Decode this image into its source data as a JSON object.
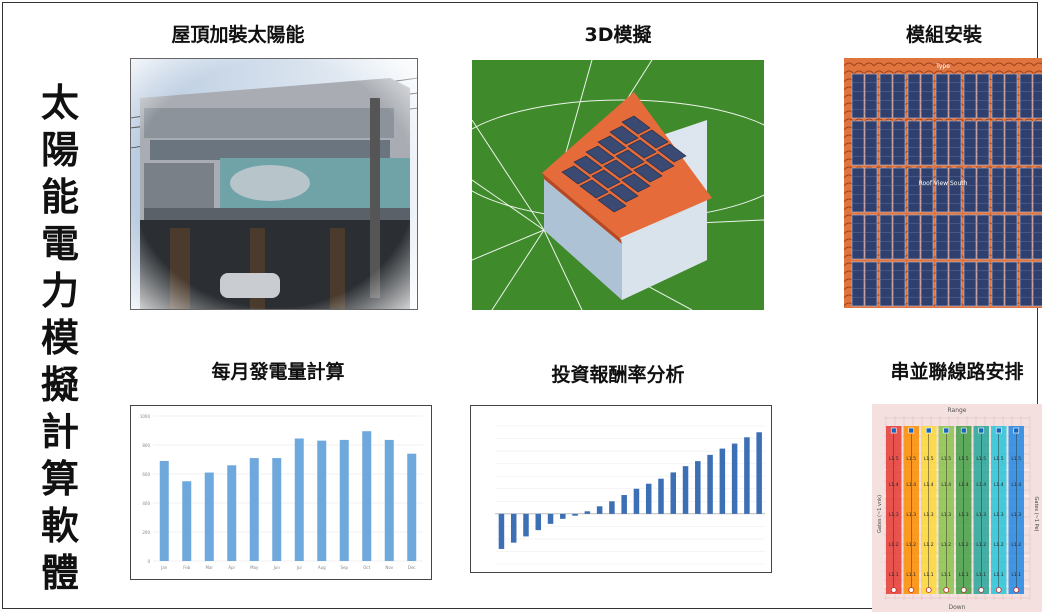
{
  "vertical_title": [
    "太",
    "陽",
    "能",
    "電",
    "力",
    "模",
    "擬",
    "計",
    "算",
    "軟",
    "體"
  ],
  "captions": {
    "photo": "屋頂加裝太陽能",
    "model3d": "3D模擬",
    "modules": "模組安裝",
    "monthly": "每月發電量計算",
    "roi": "投資報酬率分析",
    "strings": "串並聯線路安排"
  },
  "monthly_chart": {
    "chart_data": {
      "type": "bar",
      "categories": [
        "Jan",
        "Feb",
        "Mar",
        "Apr",
        "May",
        "Jun",
        "Jul",
        "Aug",
        "Sep",
        "Oct",
        "Nov",
        "Dec"
      ],
      "values": [
        690,
        550,
        610,
        660,
        710,
        710,
        845,
        830,
        835,
        895,
        835,
        740
      ],
      "ylim": [
        0,
        1000
      ],
      "yticks": [
        "0",
        "200",
        "400",
        "600",
        "800",
        "1000"
      ],
      "color": "#6fa8dc"
    }
  },
  "roi_chart": {
    "chart_data": {
      "type": "bar",
      "values": [
        -280000,
        -230000,
        -180000,
        -130000,
        -80000,
        -40000,
        -15000,
        20000,
        60000,
        100000,
        150000,
        200000,
        240000,
        280000,
        330000,
        380000,
        420000,
        470000,
        520000,
        560000,
        610000,
        650000
      ],
      "ylim": [
        -400000,
        700000
      ],
      "color": "#3d6fb5"
    }
  },
  "modules_panel": {
    "title": "Type",
    "center_label": "Roof View South"
  },
  "strings_panel": {
    "top_label": "Range",
    "bottom_label": "Down",
    "left_label": "Gates (~1 vnk)",
    "right_label": "Gates (~1 Pe)",
    "columns": [
      "#e53935",
      "#fb8c00",
      "#fdd835",
      "#8bc34a",
      "#43a047",
      "#26a69a",
      "#26c6da",
      "#1e88e5"
    ],
    "row_labels": [
      "L1.5",
      "L1.4",
      "L1.3",
      "L1.2",
      "L1.1"
    ]
  }
}
